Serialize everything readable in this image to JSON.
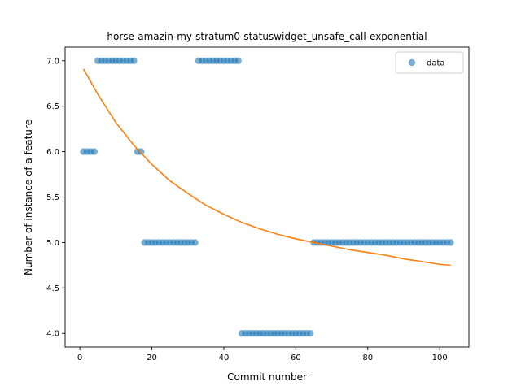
{
  "chart_data": {
    "type": "scatter",
    "title": "horse-amazin-my-stratum0-statuswidget_unsafe_call-exponential",
    "xlabel": "Commit number",
    "ylabel": "Number of instance of a feature",
    "xlim": [
      -4.1,
      108.1
    ],
    "ylim": [
      3.85,
      7.15
    ],
    "xticks": [
      0,
      20,
      40,
      60,
      80,
      100
    ],
    "xtick_labels": [
      "0",
      "20",
      "40",
      "60",
      "80",
      "100"
    ],
    "yticks": [
      4.0,
      4.5,
      5.0,
      5.5,
      6.0,
      6.5,
      7.0
    ],
    "ytick_labels": [
      "4.0",
      "4.5",
      "5.0",
      "5.5",
      "6.0",
      "6.5",
      "7.0"
    ],
    "grid": false,
    "legend_position": "top-right",
    "series": [
      {
        "name": "data",
        "kind": "scatter",
        "color": "#1f77b4",
        "alpha": 0.6,
        "segments": [
          {
            "x_from": 1,
            "x_to": 4,
            "y": 6
          },
          {
            "x_from": 5,
            "x_to": 15,
            "y": 7
          },
          {
            "x_from": 16,
            "x_to": 17,
            "y": 6
          },
          {
            "x_from": 18,
            "x_to": 32,
            "y": 5
          },
          {
            "x_from": 33,
            "x_to": 44,
            "y": 7
          },
          {
            "x_from": 45,
            "x_to": 64,
            "y": 4
          },
          {
            "x_from": 65,
            "x_to": 103,
            "y": 5
          }
        ]
      },
      {
        "kind": "line",
        "color": "#ff7f0e",
        "x": [
          1,
          5,
          10,
          15,
          20,
          25,
          30,
          35,
          40,
          45,
          50,
          55,
          60,
          65,
          70,
          75,
          80,
          85,
          90,
          95,
          100,
          103
        ],
        "y": [
          6.91,
          6.63,
          6.32,
          6.07,
          5.86,
          5.68,
          5.54,
          5.41,
          5.31,
          5.22,
          5.15,
          5.09,
          5.04,
          5.0,
          4.96,
          4.92,
          4.89,
          4.86,
          4.82,
          4.79,
          4.76,
          4.75
        ]
      }
    ]
  }
}
